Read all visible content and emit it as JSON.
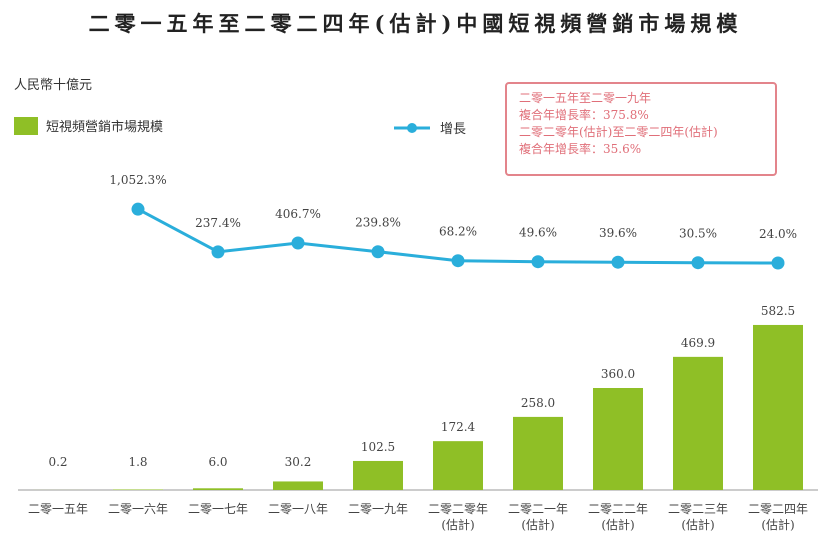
{
  "chart_data": {
    "type": "bar-line",
    "title": "二零一五年至二零二四年(估計)中國短視頻營銷市場規模",
    "y_label": "人民幣十億元",
    "categories": [
      "二零一五年",
      "二零一六年",
      "二零一七年",
      "二零一八年",
      "二零一九年",
      "二零二零年\n(估計)",
      "二零二一年\n(估計)",
      "二零二二年\n(估計)",
      "二零二三年\n(估計)",
      "二零二四年\n(估計)"
    ],
    "series": [
      {
        "name": "短視頻營銷市場規模",
        "type": "bar",
        "color": "#8fbf26",
        "values": [
          0.2,
          1.8,
          6.0,
          30.2,
          102.5,
          172.4,
          258.0,
          360.0,
          469.9,
          582.5
        ],
        "value_labels": [
          "0.2",
          "1.8",
          "6.0",
          "30.2",
          "102.5",
          "172.4",
          "258.0",
          "360.0",
          "469.9",
          "582.5"
        ]
      },
      {
        "name": "增長",
        "type": "line",
        "axis": "y2",
        "color": "#2aaedb",
        "values": [
          null,
          1052.3,
          237.4,
          406.7,
          239.8,
          68.2,
          49.6,
          39.6,
          30.5,
          24.0
        ],
        "value_labels": [
          null,
          "1,052.3%",
          "237.4%",
          "406.7%",
          "239.8%",
          "68.2%",
          "49.6%",
          "39.6%",
          "30.5%",
          "24.0%"
        ]
      }
    ],
    "ylim": [
      0,
      600
    ],
    "y2lim": [
      -300,
      1800
    ],
    "annotations": [
      "二零一五年至二零一九年",
      "複合年增長率：375.8%",
      "二零二零年(估計)至二零二四年(估計)",
      "複合年增長率：35.6%"
    ]
  }
}
